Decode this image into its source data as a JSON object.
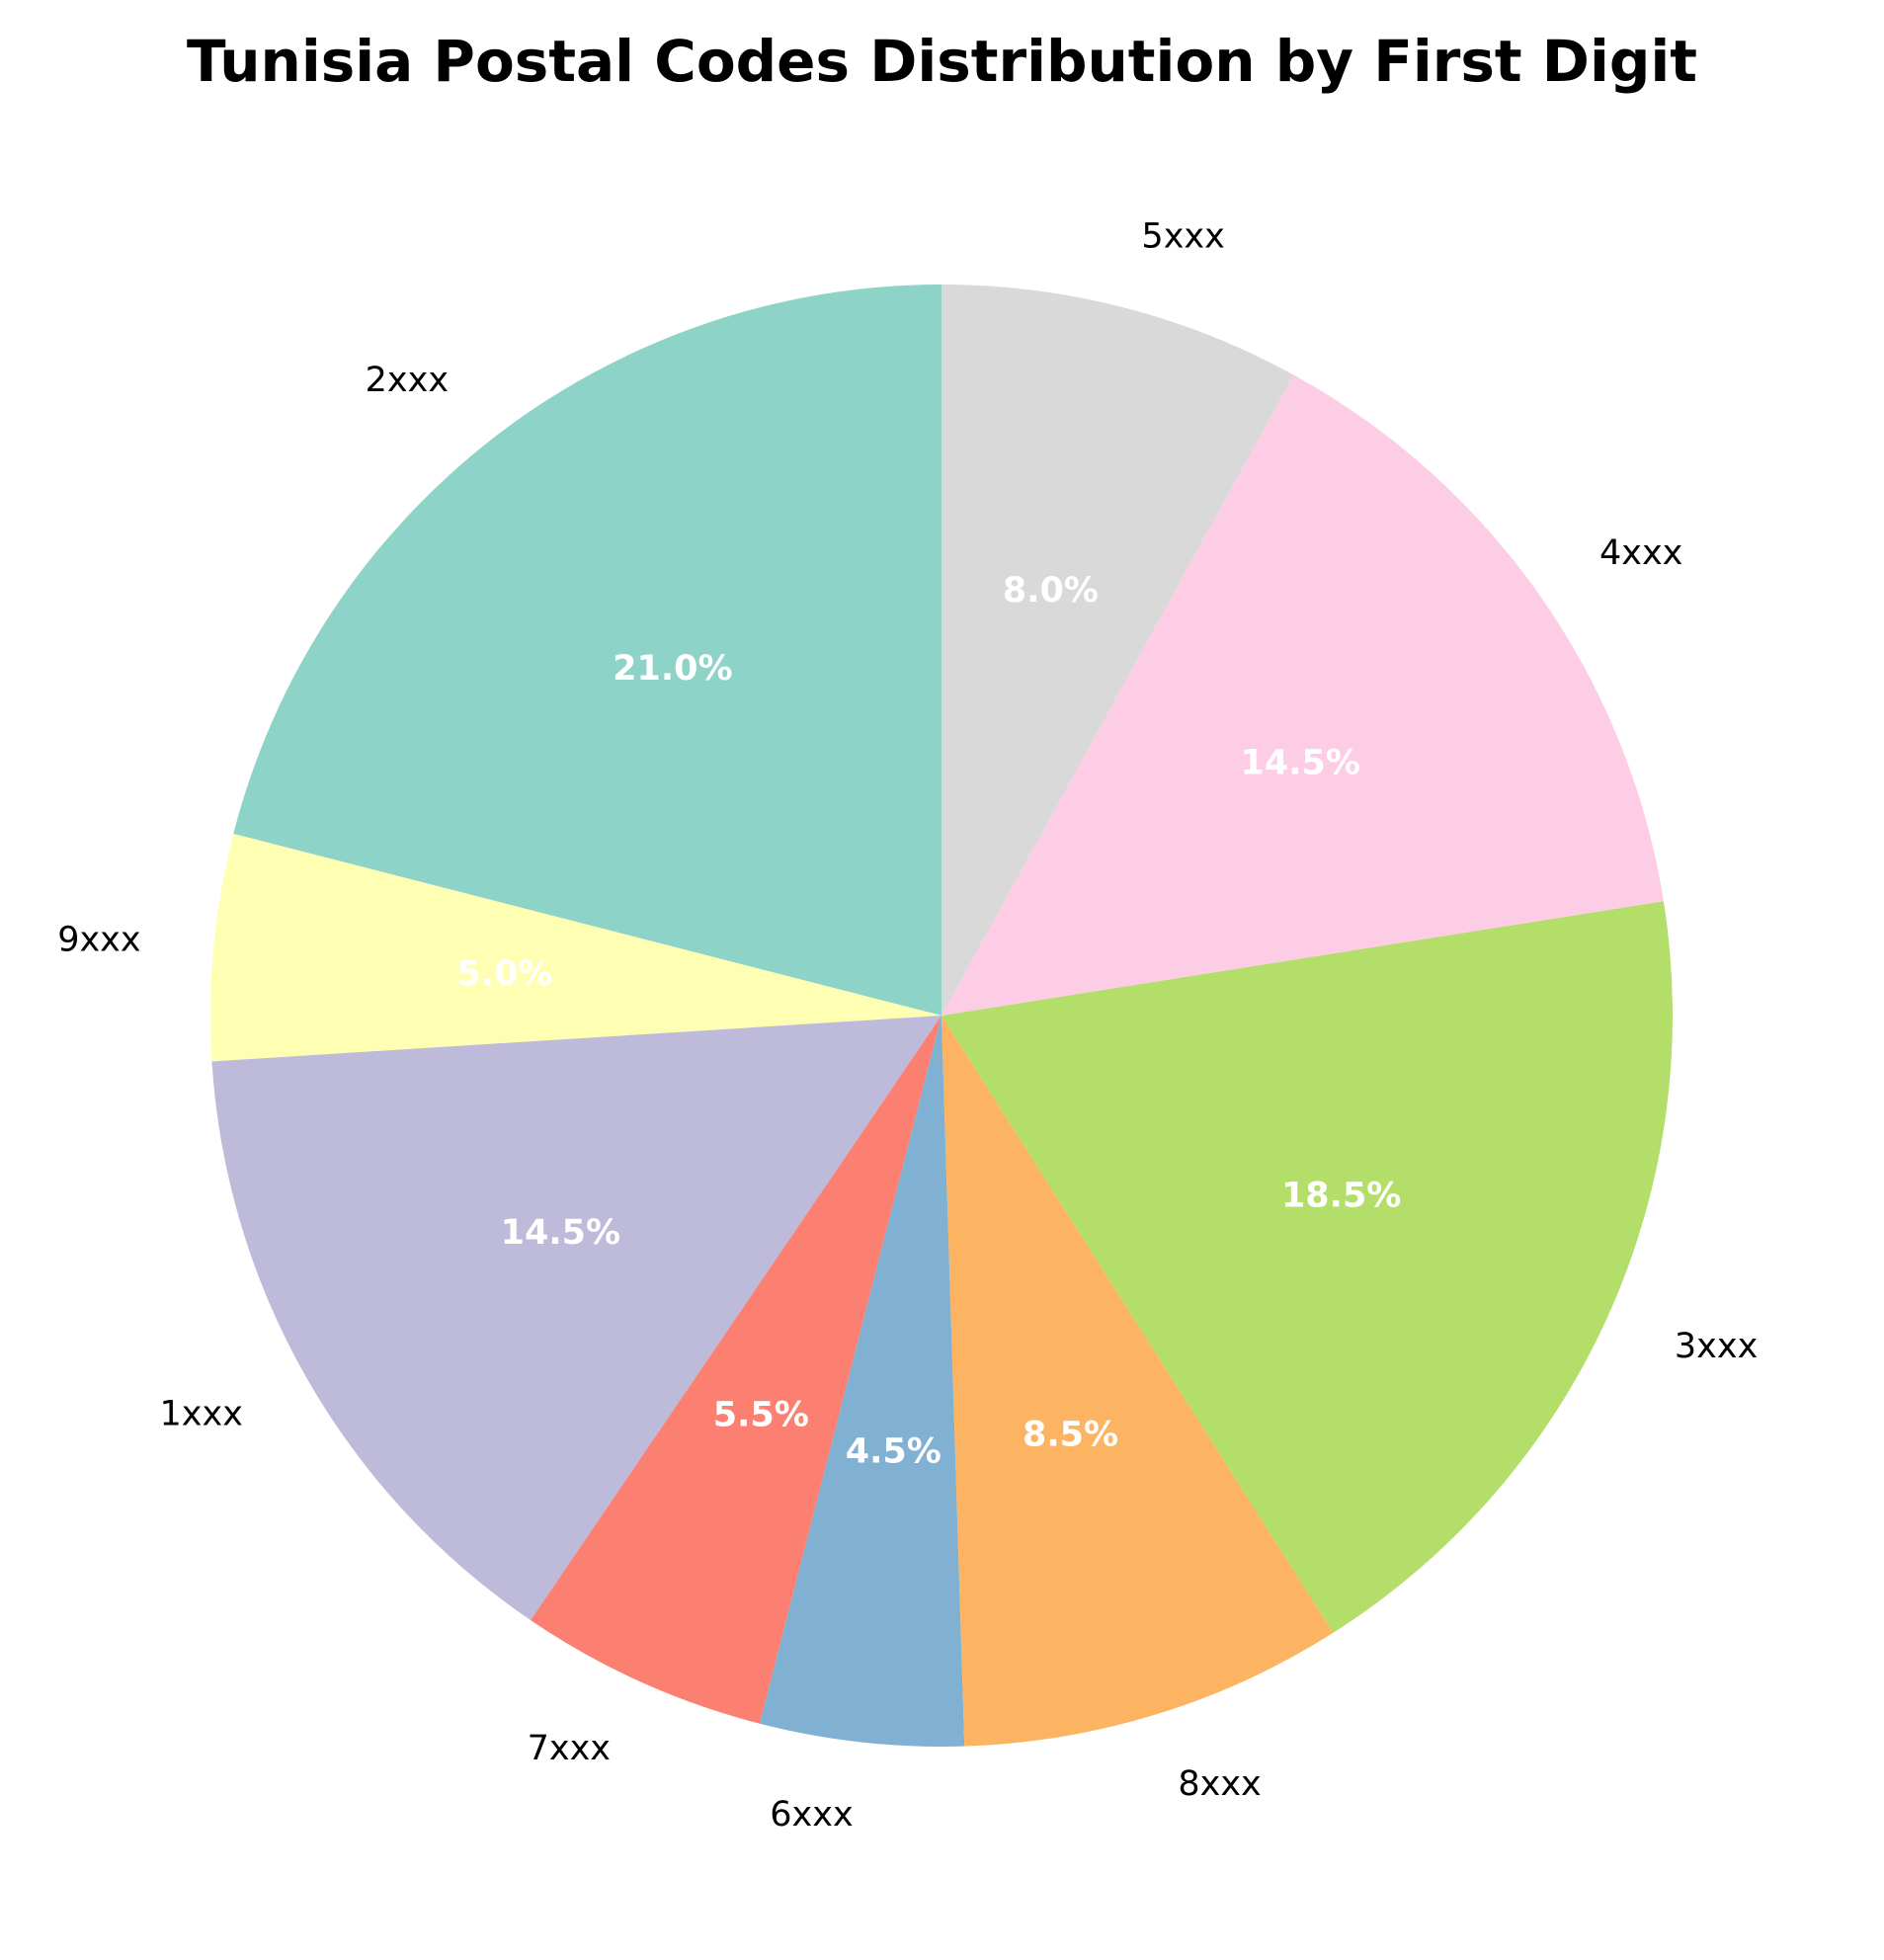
{
  "chart_data": {
    "type": "pie",
    "title": "Tunisia Postal Codes Distribution by First Digit",
    "start_angle_deg": 90,
    "direction": "counterclockwise",
    "slices": [
      {
        "label": "2xxx",
        "value": 21.0,
        "pct_label": "21.0%",
        "color": "#8dd3c7"
      },
      {
        "label": "9xxx",
        "value": 5.0,
        "pct_label": "5.0%",
        "color": "#ffffb3"
      },
      {
        "label": "1xxx",
        "value": 14.5,
        "pct_label": "14.5%",
        "color": "#bebada"
      },
      {
        "label": "7xxx",
        "value": 5.5,
        "pct_label": "5.5%",
        "color": "#fb8072"
      },
      {
        "label": "6xxx",
        "value": 4.5,
        "pct_label": "4.5%",
        "color": "#80b1d3"
      },
      {
        "label": "8xxx",
        "value": 8.5,
        "pct_label": "8.5%",
        "color": "#fdb462"
      },
      {
        "label": "3xxx",
        "value": 18.5,
        "pct_label": "18.5%",
        "color": "#b3de69"
      },
      {
        "label": "4xxx",
        "value": 14.5,
        "pct_label": "14.5%",
        "color": "#fccde5"
      },
      {
        "label": "5xxx",
        "value": 8.0,
        "pct_label": "8.0%",
        "color": "#d9d9d9"
      }
    ]
  }
}
